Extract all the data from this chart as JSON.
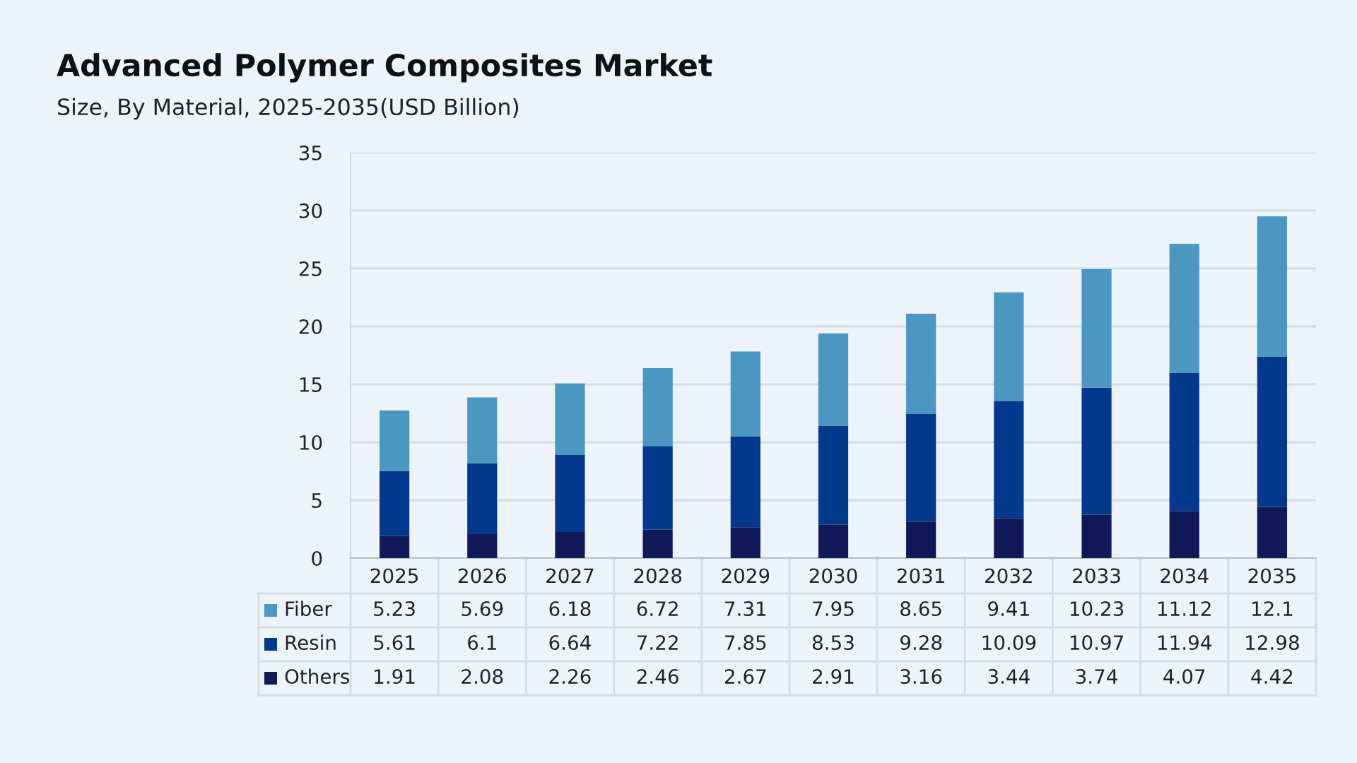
{
  "chart_data": {
    "type": "bar",
    "title": "Advanced Polymer Composites Market",
    "subtitle": "Size, By Material, 2025-2035(USD Billion)",
    "categories": [
      "2025",
      "2026",
      "2027",
      "2028",
      "2029",
      "2030",
      "2031",
      "2032",
      "2033",
      "2034",
      "2035"
    ],
    "stacked": true,
    "series": [
      {
        "name": "Others",
        "color": "#111a59",
        "values": [
          1.91,
          2.08,
          2.26,
          2.46,
          2.67,
          2.91,
          3.16,
          3.44,
          3.74,
          4.07,
          4.42
        ]
      },
      {
        "name": "Resin",
        "color": "#03388c",
        "values": [
          5.61,
          6.1,
          6.64,
          7.22,
          7.85,
          8.53,
          9.28,
          10.09,
          10.97,
          11.94,
          12.98
        ]
      },
      {
        "name": "Fiber",
        "color": "#4a97c1",
        "values": [
          5.23,
          5.69,
          6.18,
          6.72,
          7.31,
          7.95,
          8.65,
          9.41,
          10.23,
          11.12,
          12.1
        ]
      }
    ],
    "ylim": [
      0,
      35
    ],
    "yticks": [
      0,
      5,
      10,
      15,
      20,
      25,
      30,
      35
    ],
    "grid": "y",
    "data_labels": true,
    "legend": "bottom left"
  }
}
